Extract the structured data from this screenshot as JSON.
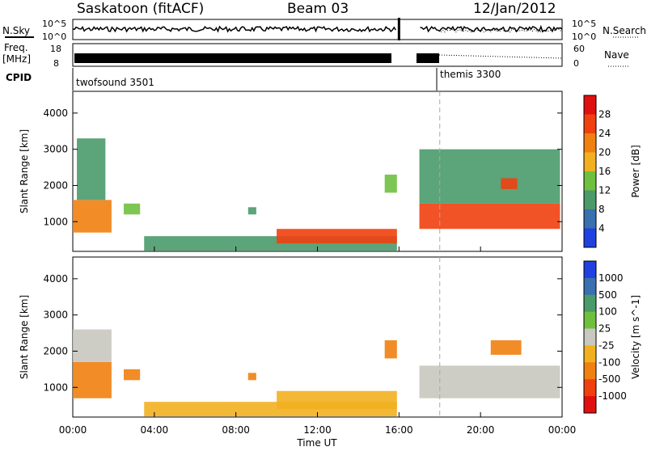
{
  "header": {
    "title": "Saskatoon (fitACF)",
    "beam": "Beam 03",
    "date": "12/Jan/2012"
  },
  "noise_panel": {
    "left_label": "N.Sky",
    "right_label": "N.Search",
    "y_ticks": [
      "10^5",
      "10^0"
    ],
    "right_ticks": [
      "10^5",
      "10^0"
    ]
  },
  "freq_panel": {
    "left_label_1": "Freq.",
    "left_label_2": "[MHz]",
    "right_label": "Nave",
    "y_ticks": [
      "18",
      "8"
    ],
    "right_ticks": [
      "60",
      "0"
    ]
  },
  "cpid_panel": {
    "label": "CPID",
    "modes": [
      {
        "name": "twofsound 3501"
      },
      {
        "name": "themis 3300"
      }
    ]
  },
  "time_axis": {
    "label": "Time UT",
    "ticks": [
      "00:00",
      "04:00",
      "08:00",
      "12:00",
      "16:00",
      "20:00",
      "00:00"
    ]
  },
  "colors": {
    "scale": [
      "#2040e0",
      "#3a6fb0",
      "#4a9a6a",
      "#70c040",
      "#c8c8c0",
      "#f2b020",
      "#f08010",
      "#f04010",
      "#e01010"
    ]
  },
  "chart_data": [
    {
      "type": "heatmap",
      "name": "power",
      "ylabel": "Slant Range [km]",
      "ylim": [
        180,
        4600
      ],
      "y_ticks": [
        "4000",
        "3000",
        "2000",
        "1000"
      ],
      "xlim": [
        0,
        24
      ],
      "colorbar": {
        "label": "Power [dB]",
        "ticks": [
          "28",
          "24",
          "20",
          "16",
          "12",
          "8",
          "4"
        ],
        "colors": [
          "#e01010",
          "#f04010",
          "#f08010",
          "#f2b020",
          "#70c040",
          "#4a9a6a",
          "#3a6fb0",
          "#2040e0"
        ]
      },
      "data": [
        {
          "t0": 0.0,
          "t1": 1.9,
          "r0": 700,
          "r1": 1600,
          "v": 22
        },
        {
          "t0": 0.2,
          "t1": 1.6,
          "r0": 1600,
          "r1": 3300,
          "v": 9
        },
        {
          "t0": 2.5,
          "t1": 3.3,
          "r0": 1200,
          "r1": 1500,
          "v": 12
        },
        {
          "t0": 8.6,
          "t1": 9.0,
          "r0": 1200,
          "r1": 1400,
          "v": 11
        },
        {
          "t0": 3.5,
          "t1": 15.9,
          "r0": 200,
          "r1": 600,
          "v": 8
        },
        {
          "t0": 10.0,
          "t1": 15.9,
          "r0": 400,
          "r1": 800,
          "v": 26
        },
        {
          "t0": 15.3,
          "t1": 15.9,
          "r0": 1800,
          "r1": 2300,
          "v": 12
        },
        {
          "t0": 17.0,
          "t1": 23.9,
          "r0": 800,
          "r1": 1500,
          "v": 24
        },
        {
          "t0": 17.0,
          "t1": 23.9,
          "r0": 1500,
          "r1": 3000,
          "v": 8
        },
        {
          "t0": 21.0,
          "t1": 21.8,
          "r0": 1900,
          "r1": 2200,
          "v": 24
        }
      ]
    },
    {
      "type": "heatmap",
      "name": "velocity",
      "ylabel": "Slant Range [km]",
      "ylim": [
        180,
        4600
      ],
      "y_ticks": [
        "4000",
        "3000",
        "2000",
        "1000"
      ],
      "xlim": [
        0,
        24
      ],
      "colorbar": {
        "label": "Velocity [m s^-1]",
        "ticks": [
          "1000",
          "500",
          "100",
          "25",
          "-25",
          "-100",
          "-500",
          "-1000"
        ],
        "colors": [
          "#2040e0",
          "#3a6fb0",
          "#4a9a6a",
          "#70c040",
          "#c8c8c0",
          "#f2b020",
          "#f08010",
          "#f04010",
          "#e01010"
        ]
      },
      "data": [
        {
          "t0": 0.0,
          "t1": 1.9,
          "r0": 700,
          "r1": 1700,
          "v": -300
        },
        {
          "t0": 0.0,
          "t1": 1.9,
          "r0": 1700,
          "r1": 2600,
          "v": 0
        },
        {
          "t0": 2.5,
          "t1": 3.3,
          "r0": 1200,
          "r1": 1500,
          "v": -300
        },
        {
          "t0": 8.6,
          "t1": 9.0,
          "r0": 1200,
          "r1": 1400,
          "v": -300
        },
        {
          "t0": 3.5,
          "t1": 15.9,
          "r0": 200,
          "r1": 600,
          "v": -60
        },
        {
          "t0": 10.0,
          "t1": 15.9,
          "r0": 400,
          "r1": 900,
          "v": -80
        },
        {
          "t0": 15.3,
          "t1": 15.9,
          "r0": 1800,
          "r1": 2300,
          "v": -300
        },
        {
          "t0": 17.0,
          "t1": 23.9,
          "r0": 700,
          "r1": 1600,
          "v": 0
        },
        {
          "t0": 20.5,
          "t1": 22.0,
          "r0": 1900,
          "r1": 2300,
          "v": -300
        }
      ]
    }
  ]
}
